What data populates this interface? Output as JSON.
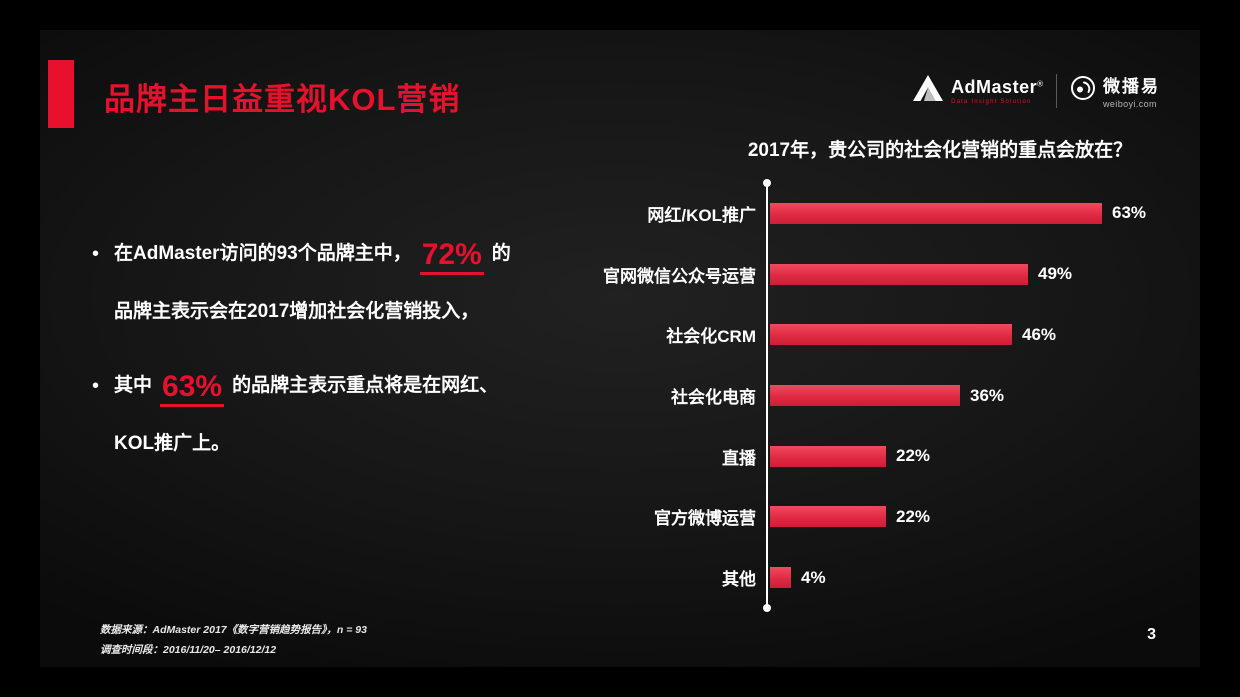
{
  "slide": {
    "title": "品牌主日益重视KOL营销",
    "page_number": "3"
  },
  "logos": {
    "admaster": {
      "name": "AdMaster",
      "registered": "®",
      "tagline": "Data Insight Solution"
    },
    "weiboyi": {
      "name": "微播易",
      "domain": "weiboyi.com"
    }
  },
  "body": {
    "bullet1": {
      "marker": "•",
      "pre": "在AdMaster访问的93个品牌主中，",
      "highlight": "72%",
      "post": "的",
      "line2": "品牌主表示会在2017增加社会化营销投入，"
    },
    "bullet2": {
      "marker": "•",
      "pre": "其中",
      "highlight": "63%",
      "post": "的品牌主表示重点将是在网红、",
      "line2": "KOL推广上。"
    }
  },
  "chart_data": {
    "type": "bar",
    "orientation": "horizontal",
    "title": "2017年，贵公司的社会化营销的重点会放在？",
    "categories": [
      "网红/KOL推广",
      "官网微信公众号运营",
      "社会化CRM",
      "社会化电商",
      "直播",
      "官方微博运营",
      "其他"
    ],
    "values": [
      63,
      49,
      46,
      36,
      22,
      22,
      4
    ],
    "value_labels": [
      "63%",
      "49%",
      "46%",
      "36%",
      "22%",
      "22%",
      "4%"
    ],
    "xlim": [
      0,
      70
    ],
    "grid": false,
    "legend": "none",
    "bar_color": "#e8354b",
    "axis_color": "#ffffff"
  },
  "footer": {
    "source": "数据来源：AdMaster 2017《数字营销趋势报告》，n = 93",
    "period": "调查时间段：2016/11/20– 2016/12/12"
  },
  "colors": {
    "accent_red": "#e8112d",
    "bar_red": "#e8354b",
    "slide_background": "#161616",
    "outer_background": "#000000"
  }
}
